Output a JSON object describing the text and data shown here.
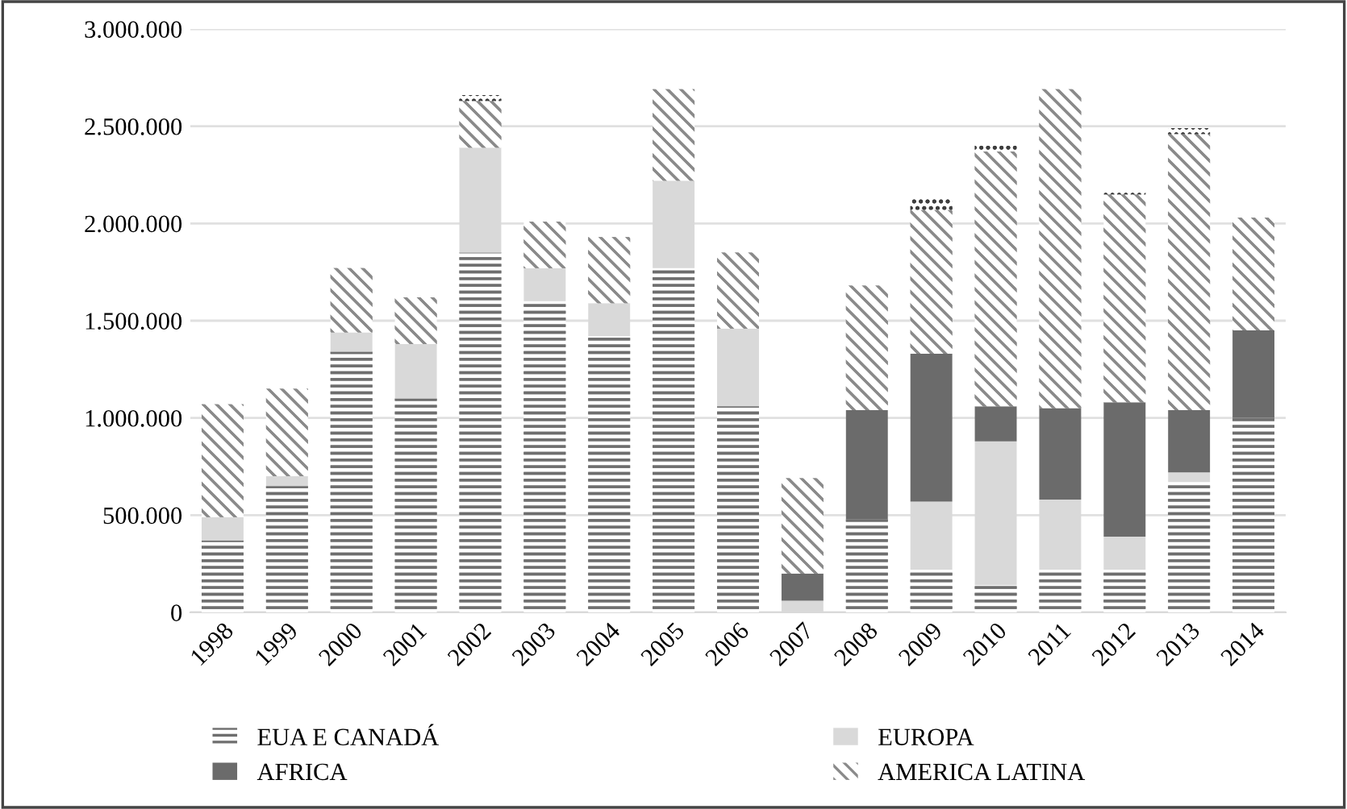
{
  "chart_data": {
    "type": "bar",
    "stacked": true,
    "categories": [
      "1998",
      "1999",
      "2000",
      "2001",
      "2002",
      "2003",
      "2004",
      "2005",
      "2006",
      "2007",
      "2008",
      "2009",
      "2010",
      "2011",
      "2012",
      "2013",
      "2014"
    ],
    "series": [
      {
        "name": "EUA E CANADÁ",
        "color": "#6e6e6e",
        "values": [
          370000,
          650000,
          1340000,
          1100000,
          1850000,
          1600000,
          1420000,
          1770000,
          1060000,
          0,
          480000,
          220000,
          140000,
          220000,
          220000,
          670000,
          1000000
        ]
      },
      {
        "name": "EUROPA",
        "color": "#d9d9d9",
        "values": [
          120000,
          50000,
          100000,
          280000,
          540000,
          170000,
          170000,
          450000,
          400000,
          60000,
          0,
          350000,
          740000,
          360000,
          170000,
          50000,
          0
        ]
      },
      {
        "name": "AFRICA",
        "color": "#6b6b6b",
        "values": [
          0,
          0,
          0,
          0,
          0,
          0,
          0,
          0,
          0,
          140000,
          560000,
          760000,
          180000,
          470000,
          690000,
          320000,
          450000
        ]
      },
      {
        "name": "AMERICA LATINA",
        "color": "#8a8a8a",
        "values": [
          580000,
          450000,
          330000,
          240000,
          240000,
          240000,
          340000,
          470000,
          390000,
          490000,
          640000,
          740000,
          1310000,
          1640000,
          1070000,
          1420000,
          580000
        ]
      },
      {
        "color": "#3a3a3a",
        "values": [
          0,
          0,
          0,
          0,
          30000,
          0,
          0,
          0,
          0,
          0,
          0,
          60000,
          30000,
          0,
          20000,
          30000,
          0
        ]
      }
    ],
    "ylim": [
      0,
      3000000
    ],
    "yticks": [
      {
        "value": 0,
        "label": "0"
      },
      {
        "value": 500000,
        "label": "500.000"
      },
      {
        "value": 1000000,
        "label": "1.000.000"
      },
      {
        "value": 1500000,
        "label": "1.500.000"
      },
      {
        "value": 2000000,
        "label": "2.000.000"
      },
      {
        "value": 2500000,
        "label": "2.500.000"
      },
      {
        "value": 3000000,
        "label": "3.000.000"
      }
    ],
    "grid": "y",
    "legend": "bottom"
  }
}
